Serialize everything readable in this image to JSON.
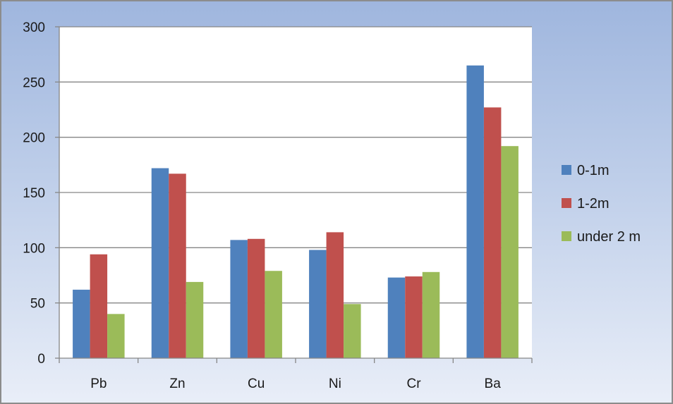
{
  "chart_data": {
    "type": "bar",
    "categories": [
      "Pb",
      "Zn",
      "Cu",
      "Ni",
      "Cr",
      "Ba"
    ],
    "series": [
      {
        "name": "0-1m",
        "color": "#4f81bd",
        "values": [
          62,
          172,
          107,
          98,
          73,
          265
        ]
      },
      {
        "name": "1-2m",
        "color": "#c0504d",
        "values": [
          94,
          167,
          108,
          114,
          74,
          227
        ]
      },
      {
        "name": "under 2 m",
        "color": "#9bbb59",
        "values": [
          40,
          69,
          79,
          49,
          78,
          192
        ]
      }
    ],
    "yticks": [
      "0",
      "50",
      "100",
      "150",
      "200",
      "250",
      "300"
    ],
    "ylim": [
      0,
      300
    ],
    "grid": true,
    "legend_position": "right"
  }
}
